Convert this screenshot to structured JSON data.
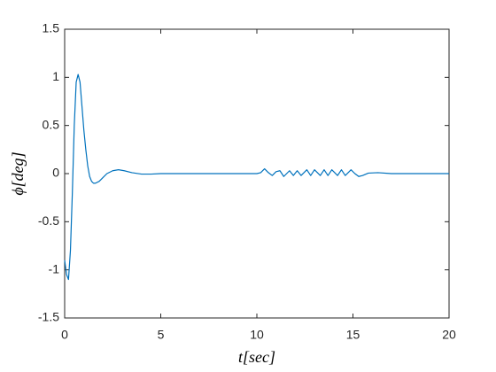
{
  "chart_data": {
    "type": "line",
    "xlabel": "t[sec]",
    "ylabel": "ϕ[deg]",
    "x": [
      0,
      0.1,
      0.2,
      0.3,
      0.4,
      0.5,
      0.6,
      0.7,
      0.8,
      0.9,
      1.0,
      1.1,
      1.2,
      1.3,
      1.4,
      1.5,
      1.6,
      1.8,
      2.0,
      2.2,
      2.5,
      2.8,
      3.1,
      3.5,
      4.0,
      4.5,
      5,
      10,
      10.2,
      10.4,
      10.6,
      10.8,
      11.0,
      11.2,
      11.4,
      11.7,
      11.9,
      12.1,
      12.3,
      12.6,
      12.8,
      13.0,
      13.3,
      13.5,
      13.7,
      13.9,
      14.2,
      14.4,
      14.6,
      14.9,
      15.1,
      15.3,
      15.5,
      15.8,
      16.3,
      17,
      20
    ],
    "series": [
      {
        "color": "#0072bd",
        "values": [
          -0.9,
          -1.05,
          -1.1,
          -0.8,
          -0.2,
          0.5,
          0.95,
          1.03,
          0.95,
          0.7,
          0.45,
          0.25,
          0.08,
          -0.03,
          -0.08,
          -0.1,
          -0.1,
          -0.08,
          -0.04,
          0,
          0.03,
          0.04,
          0.03,
          0.01,
          -0.005,
          -0.005,
          0,
          0,
          0.01,
          0.05,
          0.01,
          -0.02,
          0.02,
          0.03,
          -0.03,
          0.03,
          -0.02,
          0.03,
          -0.02,
          0.04,
          -0.02,
          0.04,
          -0.02,
          0.04,
          -0.02,
          0.04,
          -0.02,
          0.04,
          -0.02,
          0.04,
          0,
          -0.03,
          -0.02,
          0.005,
          0.01,
          0,
          0
        ]
      }
    ],
    "xlim": [
      0,
      20
    ],
    "xticks": [
      0,
      5,
      10,
      15,
      20
    ],
    "ylim": [
      -1.5,
      1.5
    ],
    "yticks": [
      -1.5,
      -1,
      -0.5,
      0,
      0.5,
      1,
      1.5
    ]
  }
}
